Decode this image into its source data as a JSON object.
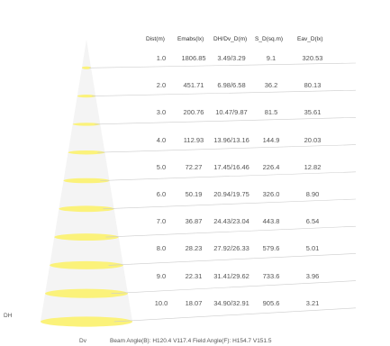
{
  "chart_data": {
    "type": "table",
    "title": "",
    "columns": [
      "Dist(m)",
      "Emabs(lx)",
      "DH/Dv_D(m)",
      "S_D(sq.m)",
      "Eav_D(lx)"
    ],
    "rows": [
      [
        "1.0",
        "1806.85",
        "3.49/3.29",
        "9.1",
        "320.53"
      ],
      [
        "2.0",
        "451.71",
        "6.98/6.58",
        "36.2",
        "80.13"
      ],
      [
        "3.0",
        "200.76",
        "10.47/9.87",
        "81.5",
        "35.61"
      ],
      [
        "4.0",
        "112.93",
        "13.96/13.16",
        "144.9",
        "20.03"
      ],
      [
        "5.0",
        "72.27",
        "17.45/16.46",
        "226.4",
        "12.82"
      ],
      [
        "6.0",
        "50.19",
        "20.94/19.75",
        "326.0",
        "8.90"
      ],
      [
        "7.0",
        "36.87",
        "24.43/23.04",
        "443.8",
        "6.54"
      ],
      [
        "8.0",
        "28.23",
        "27.92/26.33",
        "579.6",
        "5.01"
      ],
      [
        "9.0",
        "22.31",
        "31.41/29.62",
        "733.6",
        "3.96"
      ],
      [
        "10.0",
        "18.07",
        "34.90/32.91",
        "905.6",
        "3.21"
      ]
    ],
    "side_labels": {
      "dh": "DH",
      "dv": "Dv"
    },
    "footer": "Beam Angle(B): H120.4 V117.4  Field Angle(F): H154.7 V151.5",
    "colors": {
      "ellipse": "#fbf27a",
      "cone": "#f4f4f4",
      "line": "#cccccc"
    }
  }
}
